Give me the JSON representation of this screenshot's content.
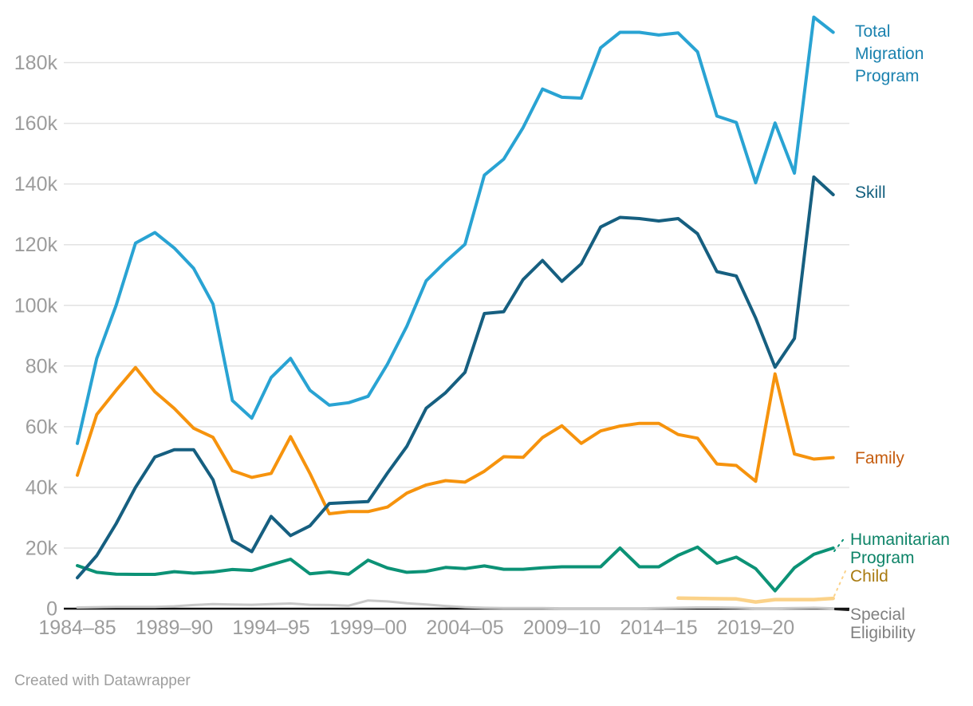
{
  "attribution": "Created with Datawrapper",
  "chart_data": {
    "type": "line",
    "title": "",
    "xlabel": "",
    "ylabel": "",
    "unit": "visa places (persons)",
    "grid": "horizontal",
    "legend_position": "right-edge-direct-labels",
    "ylim": [
      0,
      195000
    ],
    "y_axis": {
      "ticks": [
        {
          "value": 0,
          "label": "0"
        },
        {
          "value": 20000,
          "label": "20k"
        },
        {
          "value": 40000,
          "label": "40k"
        },
        {
          "value": 60000,
          "label": "60k"
        },
        {
          "value": 80000,
          "label": "80k"
        },
        {
          "value": 100000,
          "label": "100k"
        },
        {
          "value": 120000,
          "label": "120k"
        },
        {
          "value": 140000,
          "label": "140k"
        },
        {
          "value": 160000,
          "label": "160k"
        },
        {
          "value": 180000,
          "label": "180k"
        }
      ]
    },
    "x_axis": {
      "ticks": [
        {
          "index": 0,
          "label": "1984–85"
        },
        {
          "index": 5,
          "label": "1989–90"
        },
        {
          "index": 10,
          "label": "1994–95"
        },
        {
          "index": 15,
          "label": "1999–00"
        },
        {
          "index": 20,
          "label": "2004–05"
        },
        {
          "index": 25,
          "label": "2009–10"
        },
        {
          "index": 30,
          "label": "2014–15"
        },
        {
          "index": 35,
          "label": "2019–20"
        }
      ]
    },
    "categories": [
      "1984–85",
      "1985–86",
      "1986–87",
      "1987–88",
      "1988–89",
      "1989–90",
      "1990–91",
      "1991–92",
      "1992–93",
      "1993–94",
      "1994–95",
      "1995–96",
      "1996–97",
      "1997–98",
      "1998–99",
      "1999–00",
      "2000–01",
      "2001–02",
      "2002–03",
      "2003–04",
      "2004–05",
      "2005–06",
      "2006–07",
      "2007–08",
      "2008–09",
      "2009–10",
      "2010–11",
      "2011–12",
      "2012–13",
      "2013–14",
      "2014–15",
      "2015–16",
      "2016–17",
      "2017–18",
      "2018–19",
      "2019–20",
      "2020–21",
      "2021–22",
      "2022–23",
      "2023–24"
    ],
    "series": [
      {
        "key": "total",
        "name": "Total Migration Program",
        "label_lines": [
          "Total",
          "Migration",
          "Program"
        ],
        "line_color": "#29A3D3",
        "label_color": "#1B82AF",
        "values": [
          54500,
          82500,
          100000,
          120500,
          124000,
          118900,
          112200,
          100400,
          68600,
          62800,
          76200,
          82500,
          72000,
          67100,
          67900,
          70000,
          80600,
          93100,
          108100,
          114400,
          120100,
          142900,
          148200,
          158600,
          171300,
          168600,
          168300,
          184900,
          190000,
          190000,
          189100,
          189800,
          183600,
          162400,
          160300,
          140400,
          160100,
          143600,
          195000,
          190000
        ]
      },
      {
        "key": "skill",
        "name": "Skill",
        "label_lines": [
          "Skill"
        ],
        "line_color": "#165F80",
        "label_color": "#14607F",
        "values": [
          10200,
          17500,
          28000,
          40000,
          50000,
          52400,
          52400,
          42500,
          22500,
          18800,
          30400,
          24100,
          27300,
          34700,
          35000,
          35300,
          44700,
          53500,
          66100,
          71200,
          77900,
          97300,
          97900,
          108500,
          114800,
          107900,
          113700,
          125800,
          129000,
          128600,
          127800,
          128600,
          123600,
          111100,
          109700,
          95800,
          79600,
          89100,
          142300,
          136500
        ]
      },
      {
        "key": "family",
        "name": "Family",
        "label_lines": [
          "Family"
        ],
        "line_color": "#F6930D",
        "label_color": "#C55C0E",
        "values": [
          44000,
          64000,
          72000,
          79500,
          71500,
          66000,
          59500,
          56500,
          45500,
          43300,
          44600,
          56700,
          44600,
          31300,
          32000,
          32000,
          33500,
          38100,
          40800,
          42200,
          41700,
          45300,
          50100,
          49900,
          56400,
          60300,
          54500,
          58600,
          60200,
          61100,
          61100,
          57400,
          56200,
          47700,
          47200,
          42000,
          77400,
          51000,
          49300,
          49800
        ]
      },
      {
        "key": "humanitarian",
        "name": "Humanitarian Program",
        "label_lines": [
          "Humanitarian",
          "Program"
        ],
        "line_color": "#0C9276",
        "label_color": "#0E8468",
        "values": [
          14200,
          12000,
          11400,
          11300,
          11300,
          12200,
          11700,
          12100,
          12900,
          12600,
          14500,
          16300,
          11500,
          12100,
          11400,
          16000,
          13400,
          12000,
          12300,
          13600,
          13200,
          14100,
          13000,
          13000,
          13500,
          13800,
          13800,
          13800,
          20000,
          13800,
          13800,
          17600,
          20300,
          15000,
          17000,
          13200,
          5900,
          13500,
          17900,
          20000
        ]
      },
      {
        "key": "child",
        "name": "Child",
        "label_lines": [
          "Child"
        ],
        "line_color": "#FBD289",
        "label_color": "#A97B11",
        "values": [
          null,
          null,
          null,
          null,
          null,
          null,
          null,
          null,
          null,
          null,
          null,
          null,
          null,
          null,
          null,
          null,
          null,
          null,
          null,
          null,
          null,
          null,
          null,
          null,
          null,
          null,
          null,
          null,
          null,
          null,
          null,
          3500,
          3400,
          3300,
          3200,
          2200,
          3000,
          3000,
          3000,
          3400
        ]
      },
      {
        "key": "special",
        "name": "Special Eligibility",
        "label_lines": [
          "Special",
          "Eligibility"
        ],
        "line_color": "#C8C8C8",
        "label_color": "#808080",
        "values": [
          400,
          500,
          600,
          600,
          600,
          800,
          1200,
          1500,
          1400,
          1300,
          1500,
          1700,
          1300,
          1200,
          1000,
          2700,
          2400,
          1800,
          1400,
          900,
          500,
          300,
          200,
          200,
          200,
          100,
          100,
          100,
          100,
          100,
          200,
          300,
          400,
          400,
          300,
          100,
          100,
          200,
          300,
          100
        ]
      }
    ]
  }
}
